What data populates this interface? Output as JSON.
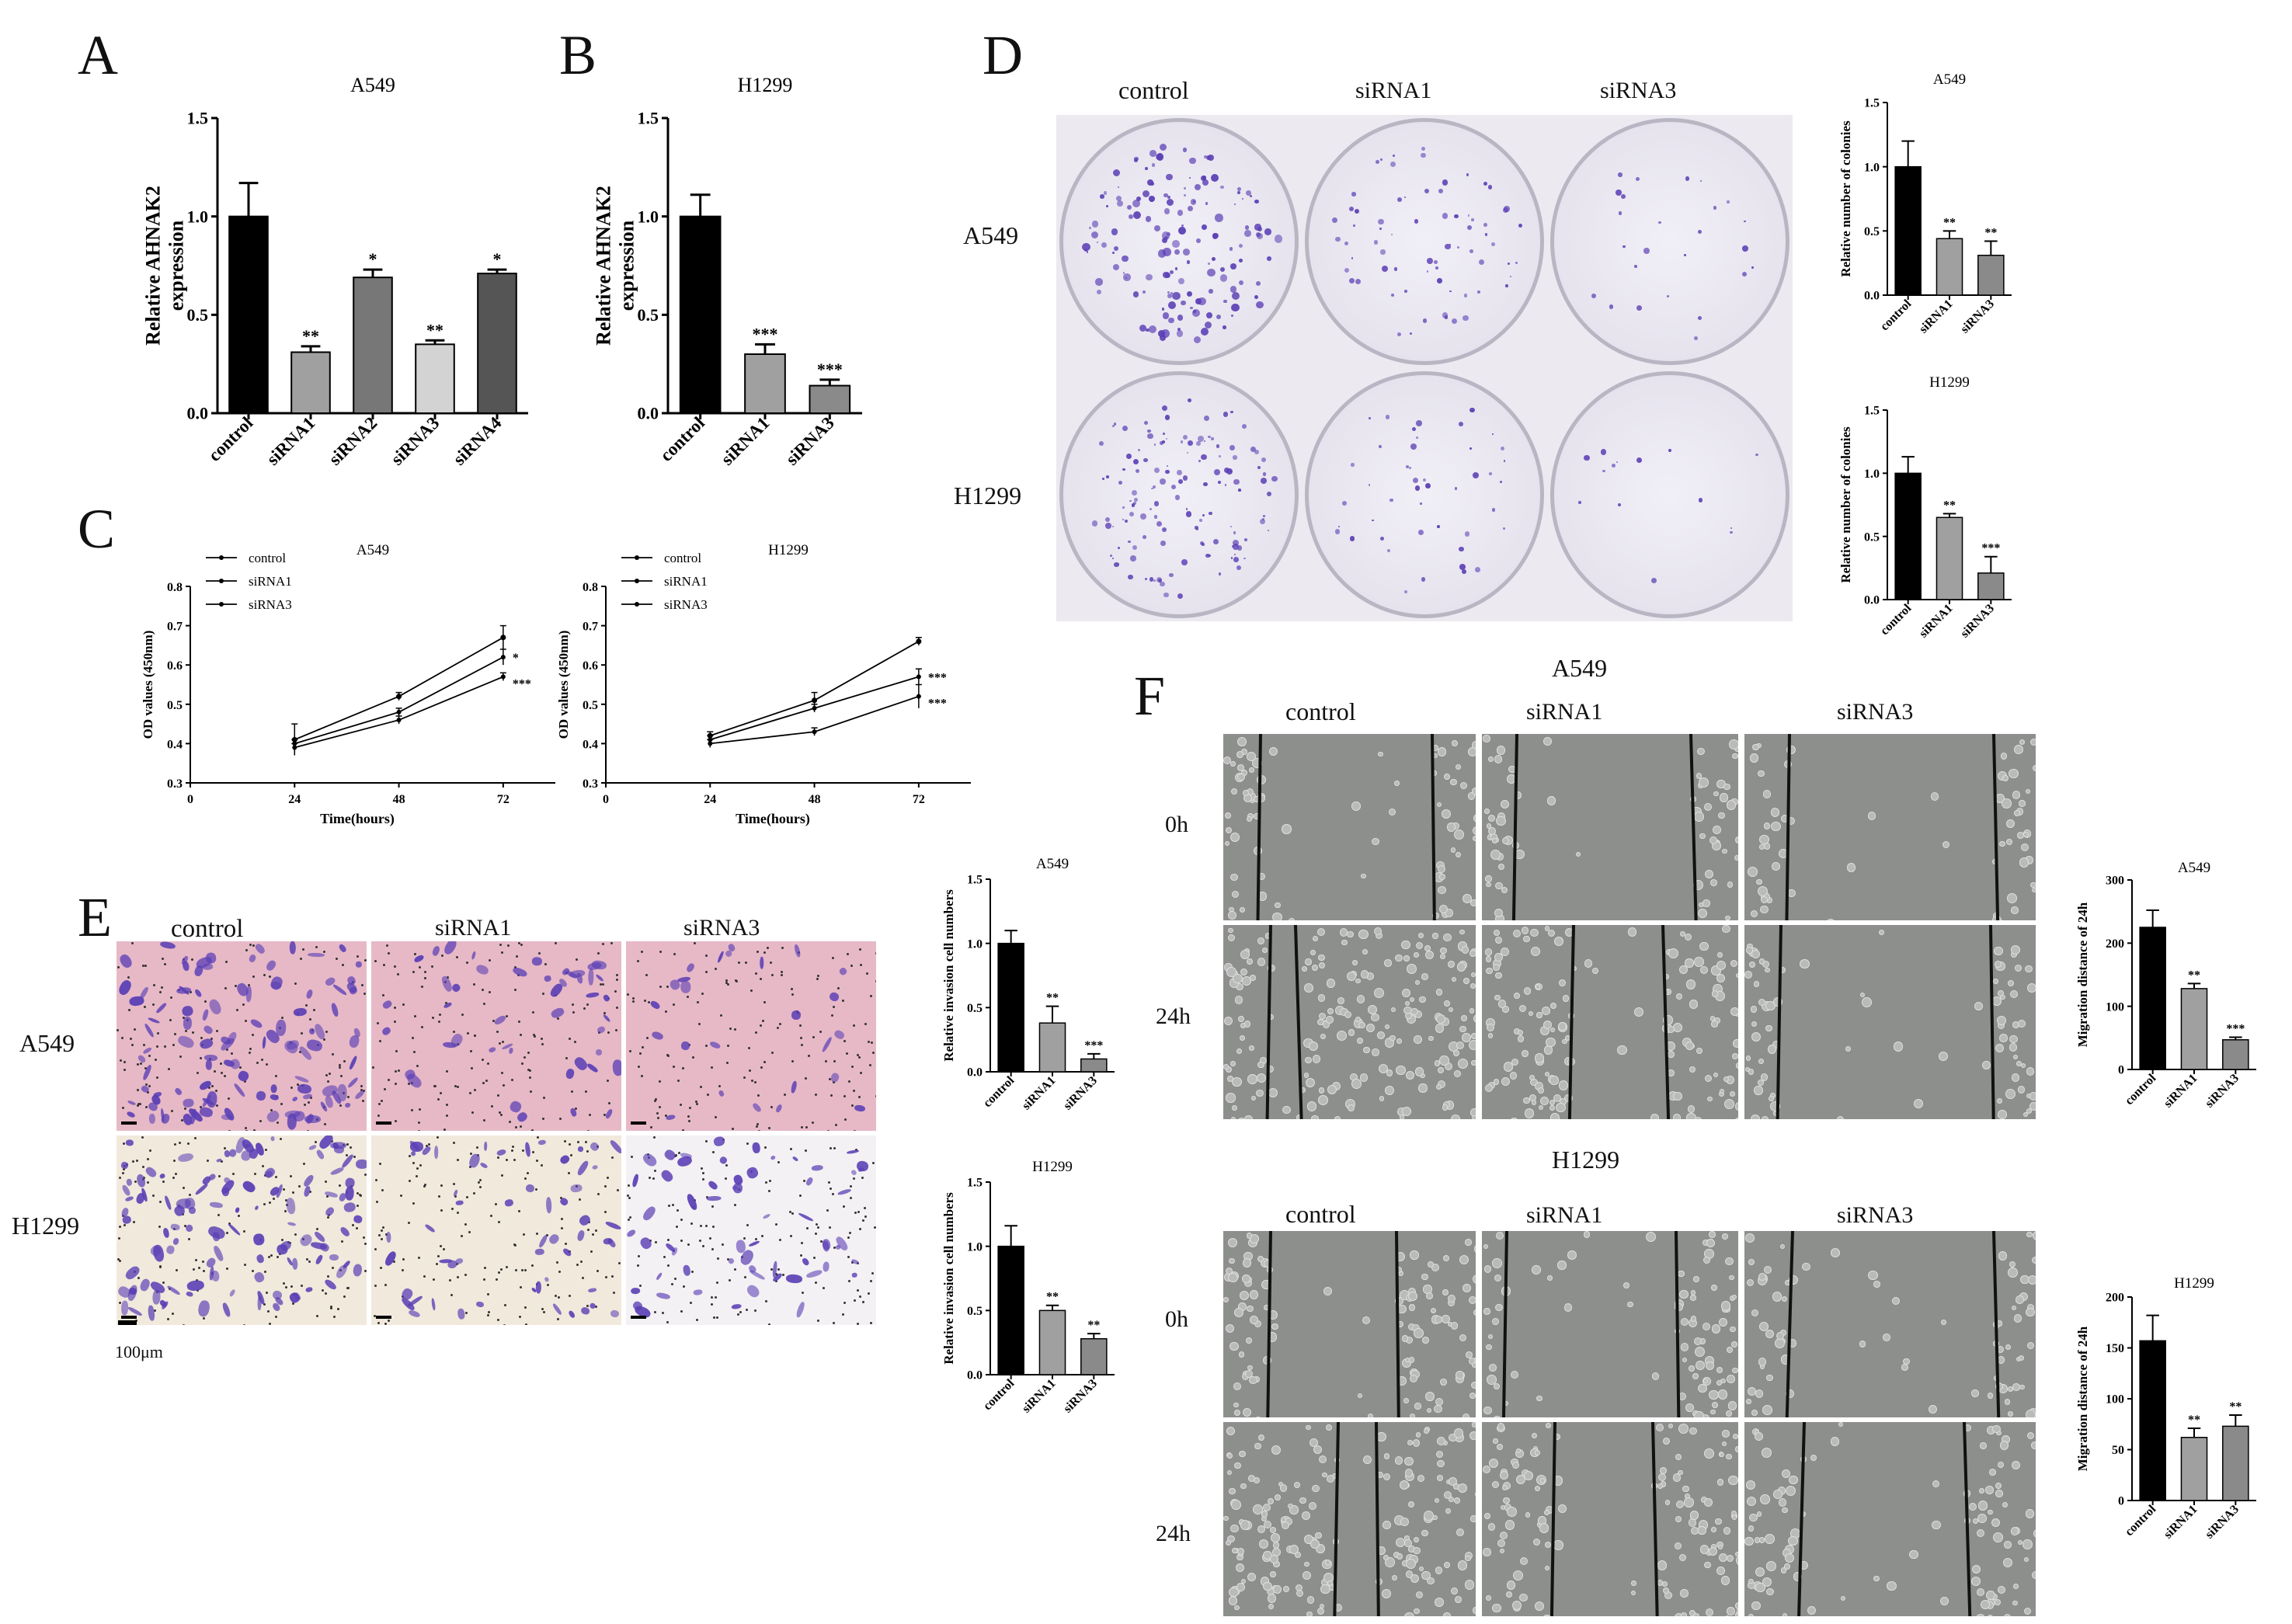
{
  "panel_labels": {
    "A": "A",
    "B": "B",
    "C": "C",
    "D": "D",
    "E": "E",
    "F": "F"
  },
  "colors": {
    "control": "#000000",
    "siRNA1": "#a0a0a0",
    "siRNA2": "#777777",
    "siRNA3": "#d3d3d3",
    "siRNA3_gray": "#8a8a8a",
    "siRNA4": "#555555",
    "stain": "#5b3fb5",
    "transwell_bg_a549": "#e7b9c7",
    "transwell_bg_h1299": "#f1e9dc",
    "wound_bg": "#8d8f8c"
  },
  "chart_data": [
    {
      "id": "A",
      "type": "bar",
      "title": "A549",
      "ylabel": "Relative AHNAK2 expression",
      "categories": [
        "control",
        "siRNA1",
        "siRNA2",
        "siRNA3",
        "siRNA4"
      ],
      "values": [
        1.0,
        0.31,
        0.69,
        0.35,
        0.71
      ],
      "errors": [
        0.17,
        0.03,
        0.04,
        0.02,
        0.02
      ],
      "sig": [
        "",
        "**",
        "*",
        "**",
        "*"
      ],
      "ylim": [
        0,
        1.5
      ],
      "yticks": [
        "0.0",
        "0.5",
        "1.0",
        "1.5"
      ]
    },
    {
      "id": "B",
      "type": "bar",
      "title": "H1299",
      "ylabel": "Relative AHNAK2 expression",
      "categories": [
        "control",
        "siRNA1",
        "siRNA3"
      ],
      "values": [
        1.0,
        0.3,
        0.14
      ],
      "errors": [
        0.11,
        0.05,
        0.03
      ],
      "sig": [
        "",
        "***",
        "***"
      ],
      "ylim": [
        0,
        1.5
      ],
      "yticks": [
        "0.0",
        "0.5",
        "1.0",
        "1.5"
      ]
    },
    {
      "id": "C1",
      "type": "line",
      "title": "A549",
      "xlabel": "Time(hours)",
      "ylabel": "OD values (450nm)",
      "x": [
        24,
        48,
        72
      ],
      "xticks": [
        "0",
        "24",
        "48",
        "72"
      ],
      "yticks": [
        "0.3",
        "0.4",
        "0.5",
        "0.6",
        "0.7",
        "0.8"
      ],
      "xlim": [
        0,
        84
      ],
      "ylim": [
        0.3,
        0.8
      ],
      "series": [
        {
          "name": "control",
          "values": [
            0.41,
            0.52,
            0.67
          ],
          "errors": [
            0.04,
            0.01,
            0.03
          ]
        },
        {
          "name": "siRNA1",
          "values": [
            0.4,
            0.48,
            0.62
          ],
          "errors": [
            0.01,
            0.01,
            0.02
          ]
        },
        {
          "name": "siRNA3",
          "values": [
            0.39,
            0.46,
            0.57
          ],
          "errors": [
            0.01,
            0.01,
            0.01
          ]
        }
      ],
      "sig": [
        "*",
        "***"
      ]
    },
    {
      "id": "C2",
      "type": "line",
      "title": "H1299",
      "xlabel": "Time(hours)",
      "ylabel": "OD values (450nm)",
      "x": [
        24,
        48,
        72
      ],
      "xticks": [
        "0",
        "24",
        "48",
        "72"
      ],
      "yticks": [
        "0.3",
        "0.4",
        "0.5",
        "0.6",
        "0.7",
        "0.8"
      ],
      "xlim": [
        0,
        84
      ],
      "ylim": [
        0.3,
        0.8
      ],
      "series": [
        {
          "name": "control",
          "values": [
            0.42,
            0.51,
            0.66
          ],
          "errors": [
            0.01,
            0.02,
            0.01
          ]
        },
        {
          "name": "siRNA1",
          "values": [
            0.41,
            0.49,
            0.57
          ],
          "errors": [
            0.01,
            0.01,
            0.02
          ]
        },
        {
          "name": "siRNA3",
          "values": [
            0.4,
            0.43,
            0.52
          ],
          "errors": [
            0.01,
            0.01,
            0.03
          ]
        }
      ],
      "sig": [
        "***",
        "***"
      ]
    },
    {
      "id": "D1",
      "type": "bar",
      "title": "A549",
      "ylabel": "Relative number of colonies",
      "categories": [
        "control",
        "siRNA1",
        "siRNA3"
      ],
      "values": [
        1.0,
        0.44,
        0.31
      ],
      "errors": [
        0.2,
        0.06,
        0.11
      ],
      "sig": [
        "",
        "**",
        "**"
      ],
      "ylim": [
        0,
        1.5
      ],
      "yticks": [
        "0.0",
        "0.5",
        "1.0",
        "1.5"
      ]
    },
    {
      "id": "D2",
      "type": "bar",
      "title": "H1299",
      "ylabel": "Relative number of colonies",
      "categories": [
        "control",
        "siRNA1",
        "siRNA3"
      ],
      "values": [
        1.0,
        0.65,
        0.21
      ],
      "errors": [
        0.13,
        0.03,
        0.13
      ],
      "sig": [
        "",
        "**",
        "***"
      ],
      "ylim": [
        0,
        1.5
      ],
      "yticks": [
        "0.0",
        "0.5",
        "1.0",
        "1.5"
      ]
    },
    {
      "id": "E1",
      "type": "bar",
      "title": "A549",
      "ylabel": "Relative invasion cell numbers",
      "categories": [
        "control",
        "siRNA1",
        "siRNA3"
      ],
      "values": [
        1.0,
        0.38,
        0.1
      ],
      "errors": [
        0.1,
        0.13,
        0.04
      ],
      "sig": [
        "",
        "**",
        "***"
      ],
      "ylim": [
        0,
        1.5
      ],
      "yticks": [
        "0.0",
        "0.5",
        "1.0",
        "1.5"
      ]
    },
    {
      "id": "E2",
      "type": "bar",
      "title": "H1299",
      "ylabel": "Relative invasion cell numbers",
      "categories": [
        "control",
        "siRNA1",
        "siRNA3"
      ],
      "values": [
        1.0,
        0.5,
        0.28
      ],
      "errors": [
        0.16,
        0.04,
        0.04
      ],
      "sig": [
        "",
        "**",
        "**"
      ],
      "ylim": [
        0,
        1.5
      ],
      "yticks": [
        "0.0",
        "0.5",
        "1.0",
        "1.5"
      ]
    },
    {
      "id": "F1",
      "type": "bar",
      "title": "A549",
      "ylabel": "Migration distance of 24h",
      "categories": [
        "control",
        "siRNA1",
        "siRNA3"
      ],
      "values": [
        225,
        128,
        47
      ],
      "errors": [
        27,
        8,
        4
      ],
      "sig": [
        "",
        "**",
        "***"
      ],
      "ylim": [
        0,
        300
      ],
      "yticks": [
        "0",
        "100",
        "200",
        "300"
      ]
    },
    {
      "id": "F2",
      "type": "bar",
      "title": "H1299",
      "ylabel": "Migration distance of 24h",
      "categories": [
        "control",
        "siRNA1",
        "siRNA3"
      ],
      "values": [
        157,
        62,
        73
      ],
      "errors": [
        25,
        9,
        11
      ],
      "sig": [
        "",
        "**",
        "**"
      ],
      "ylim": [
        0,
        200
      ],
      "yticks": [
        "0",
        "50",
        "100",
        "150",
        "200"
      ]
    }
  ],
  "panelD": {
    "col_headers": [
      "control",
      "siRNA1",
      "siRNA3"
    ],
    "row_labels": [
      "A549",
      "H1299"
    ]
  },
  "panelE": {
    "col_headers": [
      "control",
      "siRNA1",
      "siRNA3"
    ],
    "row_labels": [
      "A549",
      "H1299"
    ],
    "scale_bar": "100μm"
  },
  "panelF": {
    "group_titles": [
      "A549",
      "H1299"
    ],
    "col_headers": [
      "control",
      "siRNA1",
      "siRNA3"
    ],
    "row_labels": [
      "0h",
      "24h"
    ]
  }
}
